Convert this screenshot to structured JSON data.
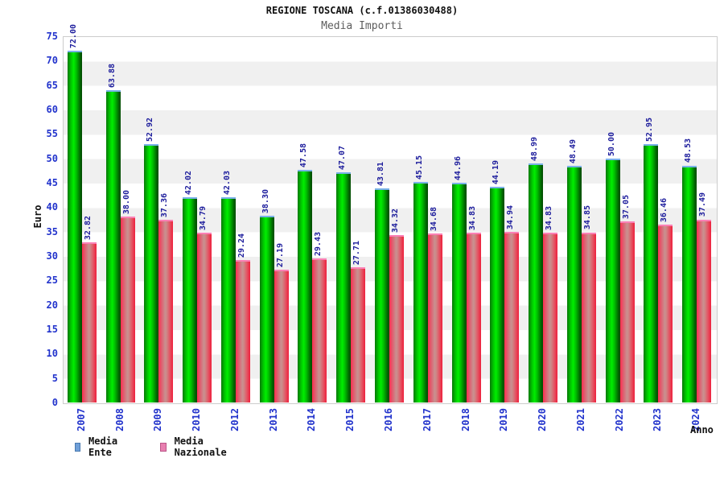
{
  "header": {
    "title": "REGIONE TOSCANA (c.f.01386030488)",
    "subtitle": "Media Importi"
  },
  "chart_data": {
    "type": "bar",
    "title": "REGIONE TOSCANA (c.f.01386030488)",
    "subtitle": "Media Importi",
    "xlabel": "Anno",
    "ylabel": "Euro",
    "ylim": [
      0,
      75
    ],
    "ytick_step": 5,
    "grid": "horizontal-alternating-bands",
    "legend_position": "bottom-left",
    "value_label_format": "2-decimals-rotated-90",
    "categories": [
      "2007",
      "2008",
      "2009",
      "2010",
      "2012",
      "2013",
      "2014",
      "2015",
      "2016",
      "2017",
      "2018",
      "2019",
      "2020",
      "2021",
      "2022",
      "2023",
      "2024"
    ],
    "series": [
      {
        "name": "Media Ente",
        "values": [
          72.0,
          63.88,
          52.92,
          42.02,
          42.03,
          38.3,
          47.58,
          47.07,
          43.81,
          45.15,
          44.96,
          44.19,
          48.99,
          48.49,
          50.0,
          52.95,
          48.53
        ]
      },
      {
        "name": "Media Nazionale",
        "values": [
          32.82,
          38.0,
          37.36,
          34.79,
          29.24,
          27.19,
          29.43,
          27.71,
          34.32,
          34.68,
          34.83,
          34.94,
          34.83,
          34.85,
          37.05,
          36.46,
          37.49
        ]
      }
    ]
  },
  "colors": {
    "bar_green": "#00cc00",
    "bar_green_cap": "#7ab1e8",
    "bar_red": "#e04058",
    "bar_red_cap": "#fb80b5",
    "legend_swatch_ente": "#6f9fd8",
    "legend_swatch_nazionale": "#e87fb0",
    "axis_tick_blue": "#2233cc",
    "value_label_navy": "#1c1c9c",
    "band_gray": "#f0f0f0",
    "plot_border": "#cccccc",
    "subtitle_gray": "#5d5d5d"
  }
}
